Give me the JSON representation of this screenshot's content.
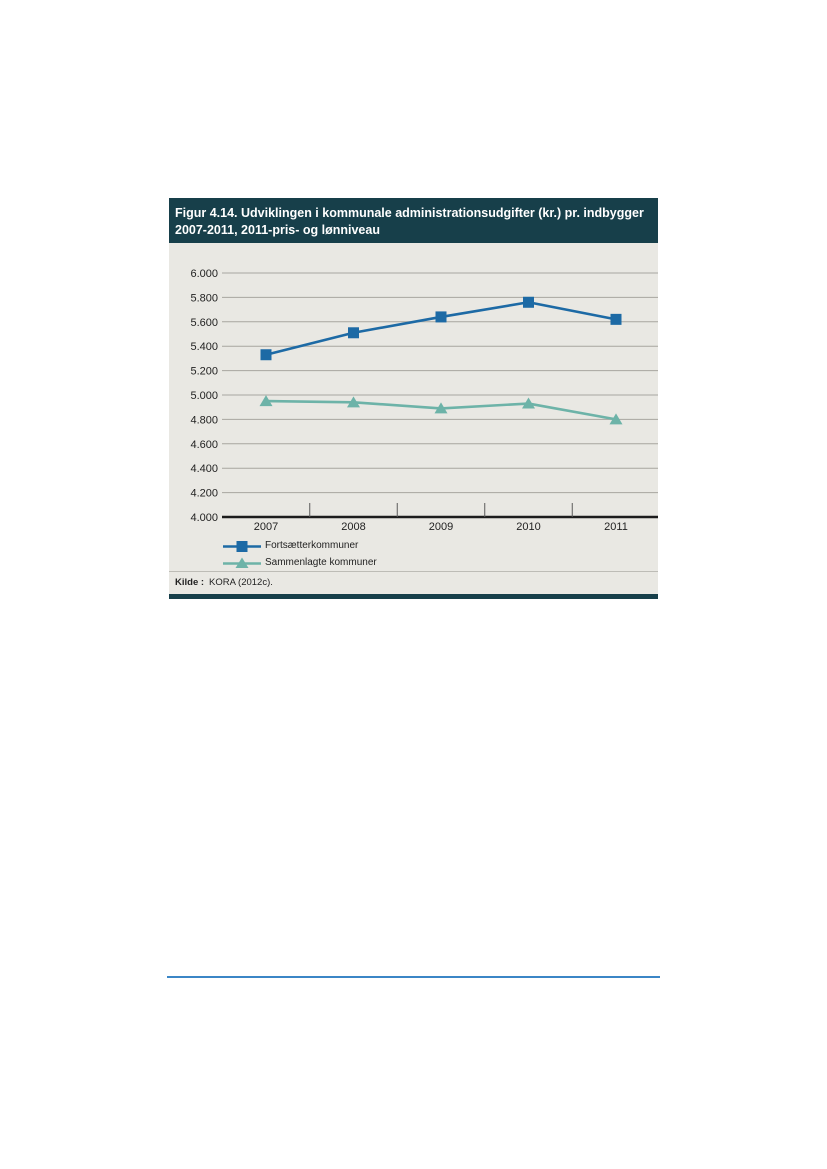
{
  "figure": {
    "title_line1": "Figur 4.14. Udviklingen i kommunale administrationsudgifter (kr.) pr. indbygger",
    "title_line2": "2007-2011, 2011-pris- og lønniveau",
    "source_label": "Kilde :",
    "source_value": "KORA (2012c)."
  },
  "chart_data": {
    "type": "line",
    "title": "Figur 4.14. Udviklingen i kommunale administrationsudgifter (kr.) pr. indbygger 2007-2011, 2011-pris- og lønniveau",
    "categories": [
      "2007",
      "2008",
      "2009",
      "2010",
      "2011"
    ],
    "ylim": [
      4000,
      6000
    ],
    "yticks": [
      4000,
      4200,
      4400,
      4600,
      4800,
      5000,
      5200,
      5400,
      5600,
      5800,
      6000
    ],
    "ytick_labels": [
      "4.000",
      "4.200",
      "4.400",
      "4.600",
      "4.800",
      "5.000",
      "5.200",
      "5.400",
      "5.600",
      "5.800",
      "6.000"
    ],
    "grid": true,
    "legend_position": "bottom-left",
    "series": [
      {
        "name": "Fortsætterkommuner",
        "values": [
          5330,
          5510,
          5640,
          5760,
          5620
        ],
        "color": "#1d6aa5",
        "marker": "square"
      },
      {
        "name": "Sammenlagte kommuner",
        "values": [
          4950,
          4940,
          4890,
          4930,
          4800
        ],
        "color": "#6db3a8",
        "marker": "triangle"
      }
    ]
  },
  "colors": {
    "header_background": "#173f4a",
    "plot_background": "#e9e8e3",
    "footer_rule": "#3b86c6"
  }
}
